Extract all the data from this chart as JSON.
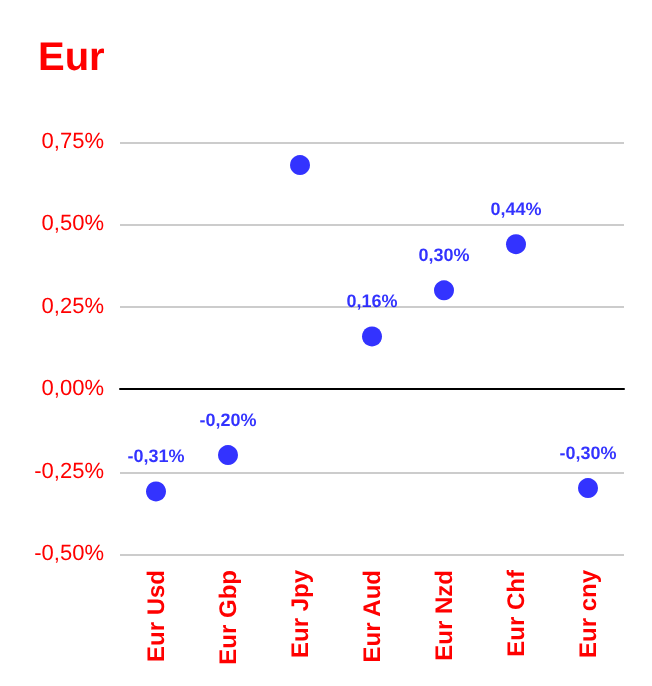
{
  "chart_data": {
    "type": "scatter",
    "title": "Eur",
    "categories": [
      "Eur Usd",
      "Eur Gbp",
      "Eur Jpy",
      "Eur Aud",
      "Eur Nzd",
      "Eur Chf",
      "Eur cny"
    ],
    "series": [
      {
        "color": "#0000ff",
        "values": [
          -0.31,
          -0.2,
          0.68,
          0.16,
          0.3,
          0.44,
          -0.3
        ],
        "value_labels": [
          "-0,31%",
          "-0,20%",
          null,
          "0,16%",
          "0,30%",
          "0,44%",
          "-0,30%"
        ]
      }
    ],
    "ylim": [
      -0.5,
      0.75
    ],
    "yticks": [
      {
        "value": -0.5,
        "label": "-0,50%"
      },
      {
        "value": -0.25,
        "label": "-0,25%"
      },
      {
        "value": 0,
        "label": "0,00%"
      },
      {
        "value": 0.25,
        "label": "0,25%"
      },
      {
        "value": 0.5,
        "label": "0,50%"
      },
      {
        "value": 0.75,
        "label": "0,75%"
      }
    ],
    "grid": "y",
    "marker": "circle"
  }
}
